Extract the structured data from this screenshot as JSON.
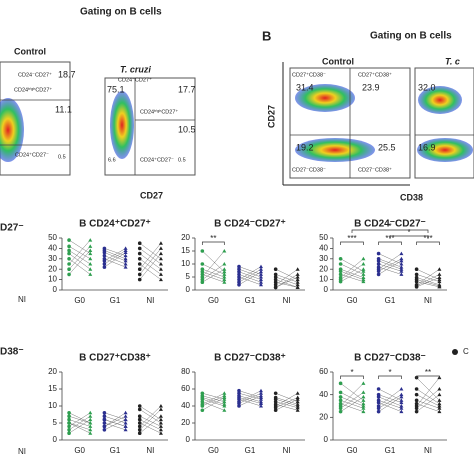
{
  "figure": {
    "panel_label": "B",
    "gating_left": "Gating on B cells",
    "gating_right": "Gating on B cells",
    "flow_texts": [
      "Control",
      "T. cruzi",
      "CD24⁻CD27⁺",
      "18.7",
      "CD24ʰⁱᵍʰCD27⁺",
      "11.1",
      "CD24⁺CD27⁻",
      "0.5",
      "CD24⁻CD27⁺",
      "75.1",
      "17.7",
      "CD24ʰⁱᵍʰCD27⁺",
      "10.5",
      "6.6",
      "CD24⁺CD27⁻",
      "0.5",
      "CD27",
      "Control",
      "T. c",
      "CD27⁺CD38⁻",
      "31.4",
      "CD27⁺CD38⁺",
      "23.9",
      "19.2",
      "25.5",
      "CD27⁻CD38⁻",
      "CD27⁻CD38⁺",
      "32.0",
      "16.9",
      "CD27",
      "CD38"
    ],
    "fragments": [
      "D27⁻",
      "NI",
      "D38⁻",
      "NI",
      "C"
    ]
  },
  "chart_data": [
    {
      "type": "dot",
      "title": "B CD24⁺CD27⁺",
      "categories": [
        "G0",
        "G1",
        "NI"
      ],
      "colors": [
        "#2e9e4f",
        "#2b2f8f",
        "#222222"
      ],
      "values": [
        [
          48,
          42,
          38,
          35,
          30,
          25,
          20,
          15
        ],
        [
          40,
          38,
          36,
          33,
          30,
          28,
          25,
          22
        ],
        [
          45,
          40,
          35,
          30,
          25,
          20,
          15,
          10
        ]
      ],
      "ylim": [
        0,
        50
      ],
      "yticks": [
        0,
        10,
        20,
        30,
        40,
        50
      ],
      "annotations": []
    },
    {
      "type": "dot",
      "title": "B CD24⁻CD27⁺",
      "categories": [
        "G0",
        "G1",
        "NI"
      ],
      "colors": [
        "#2e9e4f",
        "#2b2f8f",
        "#222222"
      ],
      "values": [
        [
          15,
          10,
          8,
          7,
          6,
          5,
          4,
          3
        ],
        [
          9,
          8,
          7,
          6,
          5,
          4,
          3,
          2
        ],
        [
          8,
          6,
          5,
          4,
          3,
          2,
          1,
          1
        ]
      ],
      "ylim": [
        0,
        20
      ],
      "yticks": [
        0,
        5,
        10,
        15,
        20
      ],
      "annotations": [
        {
          "label": "**",
          "span": [
            0,
            0
          ]
        }
      ]
    },
    {
      "type": "dot",
      "title": "B CD24⁻CD27⁻",
      "categories": [
        "G0",
        "G1",
        "NI"
      ],
      "colors": [
        "#2e9e4f",
        "#2b2f8f",
        "#222222"
      ],
      "values": [
        [
          30,
          25,
          20,
          18,
          15,
          12,
          10,
          8
        ],
        [
          35,
          30,
          28,
          25,
          22,
          20,
          18,
          15
        ],
        [
          20,
          15,
          12,
          10,
          8,
          5,
          4,
          3
        ]
      ],
      "ylim": [
        0,
        50
      ],
      "yticks": [
        0,
        10,
        20,
        30,
        40,
        50
      ],
      "annotations": [
        {
          "label": "***",
          "span": [
            0,
            0
          ]
        },
        {
          "label": "***",
          "span": [
            1,
            1
          ]
        },
        {
          "label": "***",
          "span": [
            2,
            2
          ]
        },
        {
          "label": "*",
          "span": [
            1,
            2
          ]
        },
        {
          "label": "*",
          "span": [
            0,
            2
          ]
        }
      ]
    },
    {
      "type": "dot",
      "title": "B CD27⁺CD38⁺",
      "categories": [
        "G0",
        "G1",
        "NI"
      ],
      "colors": [
        "#2e9e4f",
        "#2b2f8f",
        "#222222"
      ],
      "values": [
        [
          8,
          7,
          6,
          5,
          5,
          4,
          3,
          2
        ],
        [
          8,
          7,
          6,
          6,
          5,
          4,
          4,
          3
        ],
        [
          10,
          9,
          7,
          6,
          5,
          4,
          3,
          2
        ]
      ],
      "ylim": [
        0,
        20
      ],
      "yticks": [
        0,
        5,
        10,
        15,
        20
      ],
      "annotations": []
    },
    {
      "type": "dot",
      "title": "B CD27⁻CD38⁺",
      "categories": [
        "G0",
        "G1",
        "NI"
      ],
      "colors": [
        "#2e9e4f",
        "#2b2f8f",
        "#222222"
      ],
      "values": [
        [
          55,
          52,
          50,
          48,
          45,
          42,
          40,
          35
        ],
        [
          58,
          55,
          52,
          50,
          48,
          45,
          43,
          40
        ],
        [
          55,
          50,
          48,
          45,
          42,
          40,
          38,
          35
        ]
      ],
      "ylim": [
        0,
        80
      ],
      "yticks": [
        0,
        20,
        40,
        60,
        80
      ],
      "annotations": []
    },
    {
      "type": "dot",
      "title": "B CD27⁻CD38⁻",
      "categories": [
        "G0",
        "G1",
        "NI"
      ],
      "colors": [
        "#2e9e4f",
        "#2b2f8f",
        "#222222"
      ],
      "values": [
        [
          50,
          42,
          38,
          35,
          32,
          30,
          28,
          25
        ],
        [
          45,
          40,
          38,
          35,
          33,
          30,
          28,
          25
        ],
        [
          55,
          45,
          40,
          35,
          32,
          30,
          28,
          25
        ]
      ],
      "ylim": [
        0,
        60
      ],
      "yticks": [
        0,
        20,
        40,
        60
      ],
      "annotations": [
        {
          "label": "*",
          "span": [
            0,
            0
          ]
        },
        {
          "label": "*",
          "span": [
            1,
            1
          ]
        },
        {
          "label": "**",
          "span": [
            2,
            2
          ]
        }
      ]
    }
  ]
}
